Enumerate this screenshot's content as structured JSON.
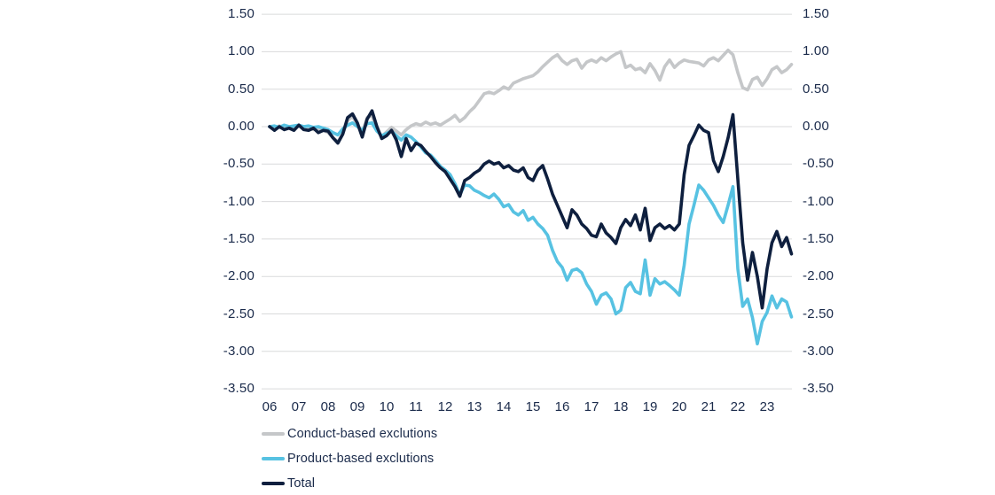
{
  "chart_data": {
    "type": "line",
    "title": "",
    "xlabel": "",
    "ylabel": "",
    "x_start_year": 2006,
    "points_per_year": 6,
    "x_tick_labels": [
      "06",
      "07",
      "08",
      "09",
      "10",
      "11",
      "12",
      "13",
      "14",
      "15",
      "16",
      "17",
      "18",
      "19",
      "20",
      "21",
      "22",
      "23"
    ],
    "ylim": [
      -3.5,
      1.5
    ],
    "ytick_step": 0.5,
    "y_tick_labels": [
      "1.50",
      "1.00",
      "0.50",
      "0.00",
      "-0.50",
      "-1.00",
      "-1.50",
      "-2.00",
      "-2.50",
      "-3.00",
      "-3.50"
    ],
    "grid": true,
    "gridline_color": "#d9dadb",
    "axis_text_color": "#1b2b4b",
    "legend_position": "bottom-left",
    "series": [
      {
        "name": "Conduct-based exclutions",
        "color": "#c5c7c9",
        "values": [
          0.0,
          -0.02,
          0.01,
          -0.02,
          0.0,
          -0.02,
          0.01,
          -0.03,
          -0.01,
          -0.04,
          -0.02,
          -0.05,
          -0.08,
          -0.15,
          -0.2,
          -0.1,
          0.08,
          0.14,
          0.02,
          -0.08,
          0.12,
          0.15,
          -0.05,
          -0.13,
          -0.07,
          -0.01,
          -0.06,
          -0.11,
          -0.04,
          0.01,
          0.04,
          0.02,
          0.06,
          0.03,
          0.05,
          0.02,
          0.06,
          0.1,
          0.15,
          0.07,
          0.12,
          0.2,
          0.26,
          0.35,
          0.44,
          0.46,
          0.44,
          0.48,
          0.53,
          0.5,
          0.58,
          0.61,
          0.64,
          0.66,
          0.68,
          0.73,
          0.8,
          0.86,
          0.92,
          0.96,
          0.88,
          0.83,
          0.88,
          0.9,
          0.78,
          0.86,
          0.89,
          0.86,
          0.92,
          0.88,
          0.93,
          0.97,
          1.0,
          0.79,
          0.82,
          0.76,
          0.78,
          0.72,
          0.84,
          0.75,
          0.62,
          0.8,
          0.89,
          0.79,
          0.85,
          0.89,
          0.87,
          0.86,
          0.85,
          0.81,
          0.89,
          0.92,
          0.88,
          0.95,
          1.02,
          0.96,
          0.72,
          0.52,
          0.49,
          0.63,
          0.66,
          0.55,
          0.64,
          0.76,
          0.8,
          0.72,
          0.76,
          0.83
        ]
      },
      {
        "name": "Product-based exclutions",
        "color": "#57c2e2",
        "values": [
          0.0,
          0.01,
          -0.01,
          0.02,
          0.0,
          0.01,
          0.02,
          0.0,
          0.01,
          -0.01,
          0.0,
          -0.02,
          -0.04,
          -0.08,
          -0.11,
          -0.03,
          0.02,
          0.05,
          0.0,
          -0.05,
          0.04,
          0.05,
          -0.06,
          -0.12,
          -0.09,
          -0.06,
          -0.12,
          -0.18,
          -0.11,
          -0.14,
          -0.2,
          -0.27,
          -0.35,
          -0.38,
          -0.45,
          -0.53,
          -0.58,
          -0.64,
          -0.76,
          -0.91,
          -0.78,
          -0.79,
          -0.85,
          -0.88,
          -0.92,
          -0.95,
          -0.9,
          -0.97,
          -1.07,
          -1.04,
          -1.14,
          -1.18,
          -1.12,
          -1.25,
          -1.21,
          -1.3,
          -1.36,
          -1.45,
          -1.65,
          -1.8,
          -1.88,
          -2.05,
          -1.92,
          -1.9,
          -1.95,
          -2.1,
          -2.2,
          -2.37,
          -2.25,
          -2.22,
          -2.3,
          -2.5,
          -2.45,
          -2.15,
          -2.08,
          -2.2,
          -2.23,
          -1.78,
          -2.25,
          -2.03,
          -2.1,
          -2.07,
          -2.12,
          -2.18,
          -2.25,
          -1.85,
          -1.3,
          -1.05,
          -0.78,
          -0.85,
          -0.95,
          -1.05,
          -1.18,
          -1.28,
          -1.05,
          -0.8,
          -1.9,
          -2.4,
          -2.3,
          -2.55,
          -2.9,
          -2.6,
          -2.48,
          -2.26,
          -2.42,
          -2.3,
          -2.34,
          -2.54
        ]
      },
      {
        "name": "Total",
        "color": "#0e1f3e",
        "values": [
          0.0,
          -0.05,
          0.0,
          -0.04,
          -0.02,
          -0.05,
          0.02,
          -0.04,
          -0.05,
          -0.02,
          -0.08,
          -0.05,
          -0.06,
          -0.15,
          -0.22,
          -0.1,
          0.12,
          0.17,
          0.05,
          -0.14,
          0.1,
          0.21,
          0.0,
          -0.16,
          -0.12,
          -0.05,
          -0.18,
          -0.4,
          -0.16,
          -0.32,
          -0.22,
          -0.25,
          -0.33,
          -0.4,
          -0.48,
          -0.55,
          -0.6,
          -0.7,
          -0.8,
          -0.93,
          -0.72,
          -0.68,
          -0.62,
          -0.58,
          -0.5,
          -0.46,
          -0.5,
          -0.48,
          -0.55,
          -0.52,
          -0.58,
          -0.6,
          -0.55,
          -0.68,
          -0.72,
          -0.58,
          -0.52,
          -0.7,
          -0.9,
          -1.05,
          -1.2,
          -1.35,
          -1.11,
          -1.18,
          -1.3,
          -1.36,
          -1.45,
          -1.47,
          -1.3,
          -1.42,
          -1.48,
          -1.56,
          -1.35,
          -1.24,
          -1.32,
          -1.18,
          -1.38,
          -1.09,
          -1.52,
          -1.35,
          -1.3,
          -1.36,
          -1.32,
          -1.38,
          -1.3,
          -0.64,
          -0.25,
          -0.12,
          0.02,
          -0.05,
          -0.08,
          -0.45,
          -0.6,
          -0.4,
          -0.15,
          0.16,
          -0.7,
          -1.55,
          -2.05,
          -1.68,
          -2.0,
          -2.42,
          -1.9,
          -1.55,
          -1.4,
          -1.6,
          -1.48,
          -1.7
        ]
      }
    ]
  }
}
